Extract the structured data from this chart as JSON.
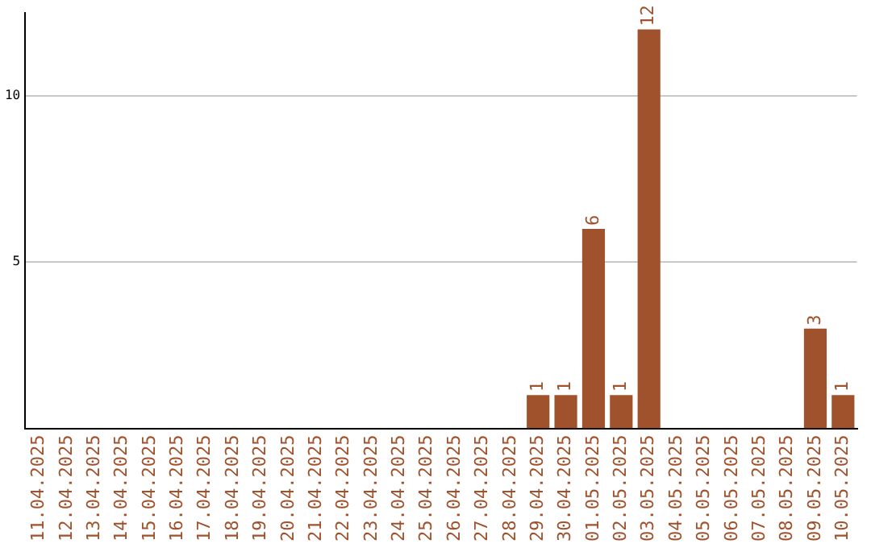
{
  "chart_data": {
    "type": "bar",
    "categories": [
      "11.04.2025",
      "12.04.2025",
      "13.04.2025",
      "14.04.2025",
      "15.04.2025",
      "16.04.2025",
      "17.04.2025",
      "18.04.2025",
      "19.04.2025",
      "20.04.2025",
      "21.04.2025",
      "22.04.2025",
      "23.04.2025",
      "24.04.2025",
      "25.04.2025",
      "26.04.2025",
      "27.04.2025",
      "28.04.2025",
      "29.04.2025",
      "30.04.2025",
      "01.05.2025",
      "02.05.2025",
      "03.05.2025",
      "04.05.2025",
      "05.05.2025",
      "06.05.2025",
      "07.05.2025",
      "08.05.2025",
      "09.05.2025",
      "10.05.2025"
    ],
    "values": [
      0,
      0,
      0,
      0,
      0,
      0,
      0,
      0,
      0,
      0,
      0,
      0,
      0,
      0,
      0,
      0,
      0,
      0,
      1,
      1,
      6,
      1,
      12,
      0,
      0,
      0,
      0,
      0,
      3,
      1
    ],
    "value_labels": [
      null,
      null,
      null,
      null,
      null,
      null,
      null,
      null,
      null,
      null,
      null,
      null,
      null,
      null,
      null,
      null,
      null,
      null,
      "1",
      "1",
      "6",
      "1",
      "12",
      null,
      null,
      null,
      null,
      null,
      "3",
      "1"
    ],
    "color": "#a0522d",
    "ylim": [
      0,
      12.5
    ],
    "yticks": [
      5,
      10
    ],
    "grid": "y"
  }
}
